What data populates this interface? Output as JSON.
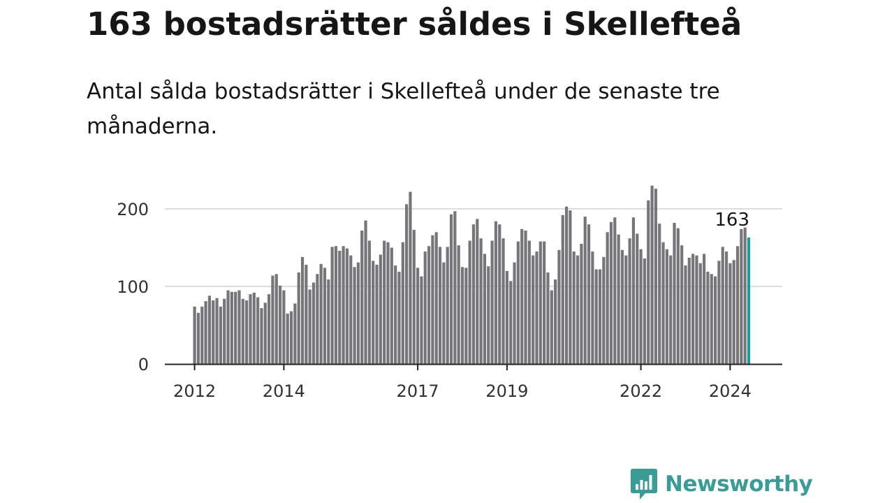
{
  "title": "163 bostadsrätter såldes i Skellefteå",
  "subtitle": "Antal sålda bostadsrätter i Skellefteå under de senaste tre månaderna.",
  "brand": {
    "name": "Newsworthy",
    "logo_icon": "bar-chart-speech-bubble-icon",
    "color": "#3a9c97"
  },
  "colors": {
    "bar": "#76767a",
    "highlight": "#1a9b9b",
    "grid": "#dcdcdc",
    "axis": "#222222"
  },
  "chart_data": {
    "type": "bar",
    "title": "163 bostadsrätter såldes i Skellefteå",
    "subtitle": "Antal sålda bostadsrätter i Skellefteå under de senaste tre månaderna.",
    "xlabel": "",
    "ylabel": "",
    "ylim": [
      0,
      245
    ],
    "yticks": [
      0,
      100,
      200
    ],
    "grid": true,
    "x_start": "2012-01",
    "x_ticks": [
      {
        "label": "2012",
        "index": 0
      },
      {
        "label": "2014",
        "index": 24
      },
      {
        "label": "2017",
        "index": 60
      },
      {
        "label": "2019",
        "index": 84
      },
      {
        "label": "2022",
        "index": 120
      },
      {
        "label": "2024",
        "index": 144
      }
    ],
    "highlight_index": 149,
    "annotation": {
      "label": "163",
      "index": 149,
      "value": 163
    },
    "series": [
      {
        "name": "Antal sålda bostadsrätter",
        "values": [
          74,
          66,
          74,
          81,
          88,
          82,
          85,
          74,
          84,
          95,
          93,
          93,
          95,
          84,
          82,
          90,
          92,
          86,
          72,
          79,
          90,
          114,
          116,
          101,
          95,
          65,
          68,
          78,
          118,
          138,
          128,
          96,
          105,
          116,
          129,
          124,
          109,
          151,
          152,
          146,
          152,
          149,
          140,
          125,
          131,
          172,
          185,
          159,
          133,
          128,
          141,
          159,
          157,
          150,
          127,
          119,
          157,
          206,
          222,
          173,
          124,
          113,
          145,
          152,
          166,
          170,
          151,
          131,
          151,
          193,
          197,
          153,
          125,
          124,
          159,
          180,
          187,
          162,
          142,
          126,
          159,
          184,
          180,
          162,
          120,
          107,
          131,
          158,
          174,
          172,
          159,
          140,
          145,
          158,
          158,
          118,
          95,
          109,
          147,
          192,
          203,
          198,
          145,
          140,
          155,
          190,
          180,
          145,
          122,
          122,
          138,
          170,
          183,
          189,
          167,
          147,
          140,
          162,
          189,
          168,
          148,
          136,
          211,
          230,
          226,
          181,
          157,
          148,
          140,
          182,
          175,
          153,
          127,
          137,
          142,
          140,
          130,
          142,
          119,
          116,
          113,
          133,
          151,
          145,
          130,
          134,
          152,
          174,
          176,
          163
        ]
      }
    ]
  }
}
